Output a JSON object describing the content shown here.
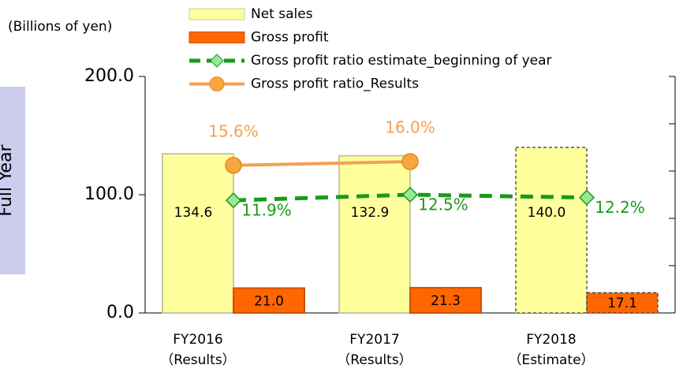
{
  "chart_data": {
    "type": "bar_line",
    "y_axis_label": "(Billions of yen)",
    "side_label": "Full Year",
    "categories": [
      [
        "FY2016",
        "（Results）"
      ],
      [
        "FY2017",
        "（Results）"
      ],
      [
        "FY2018",
        "（Estimate）"
      ]
    ],
    "series": [
      {
        "name": "Net sales",
        "kind": "bar",
        "color": "#ffff9e",
        "values": [
          134.6,
          132.9,
          140.0
        ],
        "value_labels": [
          "134.6",
          "132.9",
          "140.0"
        ]
      },
      {
        "name": "Gross profit",
        "kind": "bar",
        "color": "#ff6600",
        "values": [
          21.0,
          21.3,
          17.1
        ],
        "value_labels": [
          "21.0",
          "21.3",
          "17.1"
        ]
      },
      {
        "name": "Gross profit ratio estimate_beginning of year",
        "kind": "line",
        "axis": "y2",
        "color": "#1a9a1a",
        "values": [
          11.9,
          12.5,
          12.2
        ],
        "value_labels": [
          "11.9%",
          "12.5%",
          "12.2%"
        ]
      },
      {
        "name": "Gross profit ratio_Results",
        "kind": "line",
        "axis": "y2",
        "color": "#f5a050",
        "values": [
          15.6,
          16.0,
          null
        ],
        "value_labels": [
          "15.6%",
          "16.0%",
          null
        ]
      }
    ],
    "ylim": [
      0,
      200
    ],
    "yticks": [
      {
        "value": 0,
        "label": "0.0"
      },
      {
        "value": 100,
        "label": "100.0"
      },
      {
        "value": 200,
        "label": "200.0"
      }
    ],
    "y2lim": [
      0,
      25
    ],
    "y2ticks": [
      0,
      5,
      10,
      15,
      20,
      25
    ]
  }
}
